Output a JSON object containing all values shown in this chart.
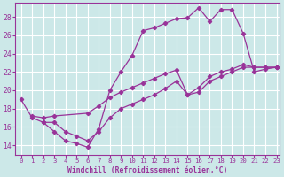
{
  "xlabel": "Windchill (Refroidissement éolien,°C)",
  "line_color": "#993399",
  "bg_color": "#cce8e8",
  "grid_color": "#ffffff",
  "xlim": [
    -0.5,
    23.3
  ],
  "ylim": [
    13.0,
    29.5
  ],
  "yticks": [
    14,
    16,
    18,
    20,
    22,
    24,
    26,
    28
  ],
  "xticks": [
    0,
    1,
    2,
    3,
    4,
    5,
    6,
    7,
    8,
    9,
    10,
    11,
    12,
    13,
    14,
    15,
    16,
    17,
    18,
    19,
    20,
    21,
    22,
    23
  ],
  "lines": [
    {
      "x": [
        0,
        1,
        2,
        3,
        4,
        5,
        6,
        7,
        8,
        9,
        10,
        11,
        12,
        13,
        14,
        15,
        16,
        17,
        18,
        19,
        20,
        21,
        22,
        23
      ],
      "y": [
        19.0,
        17.0,
        16.5,
        15.5,
        14.5,
        14.2,
        13.8,
        15.8,
        20.0,
        22.0,
        23.8,
        26.5,
        26.8,
        27.3,
        27.8,
        27.9,
        29.0,
        27.5,
        28.8,
        28.8,
        26.2,
        22.0,
        22.3,
        22.5
      ]
    },
    {
      "x": [
        1,
        2,
        3,
        6,
        7,
        8,
        9,
        10,
        11,
        12,
        13,
        14,
        15,
        16,
        17,
        18,
        19,
        20,
        21,
        22,
        23
      ],
      "y": [
        17.2,
        17.0,
        17.2,
        17.5,
        18.3,
        19.2,
        19.8,
        20.3,
        20.8,
        21.3,
        21.8,
        22.2,
        19.5,
        20.3,
        21.5,
        22.0,
        22.3,
        22.8,
        22.5,
        22.5,
        22.5
      ]
    },
    {
      "x": [
        2,
        3,
        4,
        5,
        6,
        7,
        8,
        9,
        10,
        11,
        12,
        13,
        14,
        15,
        16,
        17,
        18,
        19,
        20,
        21,
        22,
        23
      ],
      "y": [
        16.5,
        16.5,
        15.5,
        15.0,
        14.5,
        15.5,
        17.0,
        18.0,
        18.5,
        19.0,
        19.5,
        20.2,
        21.0,
        19.5,
        19.8,
        21.0,
        21.5,
        22.0,
        22.5,
        22.5,
        22.5,
        22.5
      ]
    }
  ]
}
